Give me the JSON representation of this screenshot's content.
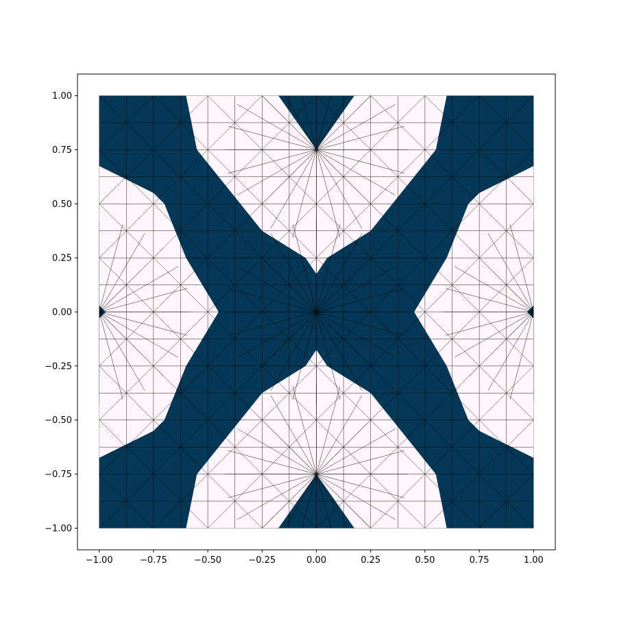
{
  "chart_data": {
    "type": "heatmap",
    "subtype": "triangular-mesh-material-distribution",
    "title": "",
    "xlabel": "",
    "ylabel": "",
    "xlim": [
      -1.1,
      1.1
    ],
    "ylim": [
      -1.1,
      1.1
    ],
    "domain": {
      "x": [
        -1.0,
        1.0
      ],
      "y": [
        -1.0,
        1.0
      ]
    },
    "x_ticks": [
      -1.0,
      -0.75,
      -0.5,
      -0.25,
      0.0,
      0.25,
      0.5,
      0.75,
      1.0
    ],
    "y_ticks": [
      -1.0,
      -0.75,
      -0.5,
      -0.25,
      0.0,
      0.25,
      0.5,
      0.75,
      1.0
    ],
    "x_tick_labels": [
      "−1.00",
      "−0.75",
      "−0.50",
      "−0.25",
      "0.00",
      "0.25",
      "0.50",
      "0.75",
      "1.00"
    ],
    "y_tick_labels": [
      "−1.00",
      "−0.75",
      "−0.50",
      "−0.25",
      "0.00",
      "0.25",
      "0.50",
      "0.75",
      "1.00"
    ],
    "grid": false,
    "legend": "none",
    "colors": {
      "solid": "#053756",
      "void": "#fff7fb",
      "mesh_edge": "#000000"
    },
    "solid_regions": [
      [
        [
          -1.0,
          1.0
        ],
        [
          -0.6,
          1.0
        ],
        [
          -0.55,
          0.75
        ],
        [
          -0.35,
          0.5
        ],
        [
          -0.25,
          0.375
        ],
        [
          -0.05,
          0.25
        ],
        [
          0.0,
          0.175
        ],
        [
          0.05,
          0.25
        ],
        [
          0.25,
          0.375
        ],
        [
          0.35,
          0.5
        ],
        [
          0.55,
          0.75
        ],
        [
          0.6,
          1.0
        ],
        [
          1.0,
          1.0
        ],
        [
          1.0,
          0.675
        ],
        [
          0.75,
          0.55
        ],
        [
          0.7,
          0.5
        ],
        [
          0.6,
          0.25
        ],
        [
          0.45,
          0.0
        ],
        [
          0.6,
          -0.25
        ],
        [
          0.7,
          -0.5
        ],
        [
          0.75,
          -0.55
        ],
        [
          1.0,
          -0.675
        ],
        [
          1.0,
          -1.0
        ],
        [
          0.6,
          -1.0
        ],
        [
          0.55,
          -0.75
        ],
        [
          0.35,
          -0.5
        ],
        [
          0.25,
          -0.375
        ],
        [
          0.05,
          -0.25
        ],
        [
          0.0,
          -0.175
        ],
        [
          -0.05,
          -0.25
        ],
        [
          -0.25,
          -0.375
        ],
        [
          -0.35,
          -0.5
        ],
        [
          -0.55,
          -0.75
        ],
        [
          -0.6,
          -1.0
        ],
        [
          -1.0,
          -1.0
        ],
        [
          -1.0,
          -0.675
        ],
        [
          -0.75,
          -0.55
        ],
        [
          -0.7,
          -0.5
        ],
        [
          -0.6,
          -0.25
        ],
        [
          -0.45,
          0.0
        ],
        [
          -0.6,
          0.25
        ],
        [
          -0.7,
          0.5
        ],
        [
          -0.75,
          0.55
        ],
        [
          -1.0,
          0.675
        ]
      ],
      [
        [
          -0.175,
          1.0
        ],
        [
          0.175,
          1.0
        ],
        [
          0.0,
          0.75
        ]
      ],
      [
        [
          -0.175,
          -1.0
        ],
        [
          0.175,
          -1.0
        ],
        [
          0.0,
          -0.75
        ]
      ],
      [
        [
          -1.0,
          0.03
        ],
        [
          -0.97,
          0.0
        ],
        [
          -1.0,
          -0.03
        ]
      ],
      [
        [
          1.0,
          0.03
        ],
        [
          0.97,
          0.0
        ],
        [
          1.0,
          -0.03
        ]
      ]
    ],
    "mesh": {
      "grid_x": [
        -1.0,
        -0.875,
        -0.75,
        -0.625,
        -0.5,
        -0.375,
        -0.25,
        -0.125,
        0.0,
        0.125,
        0.25,
        0.375,
        0.5,
        0.625,
        0.75,
        0.875,
        1.0
      ],
      "grid_y": [
        -1.0,
        -0.875,
        -0.75,
        -0.625,
        -0.5,
        -0.375,
        -0.25,
        -0.125,
        0.0,
        0.125,
        0.25,
        0.375,
        0.5,
        0.625,
        0.75,
        0.875,
        1.0
      ],
      "fan_centers": [
        [
          0.0,
          0.75
        ],
        [
          0.0,
          -0.75
        ],
        [
          0.0,
          0.0
        ],
        [
          -1.0,
          0.0
        ],
        [
          1.0,
          0.0
        ]
      ],
      "fan_radius": 0.42
    }
  }
}
